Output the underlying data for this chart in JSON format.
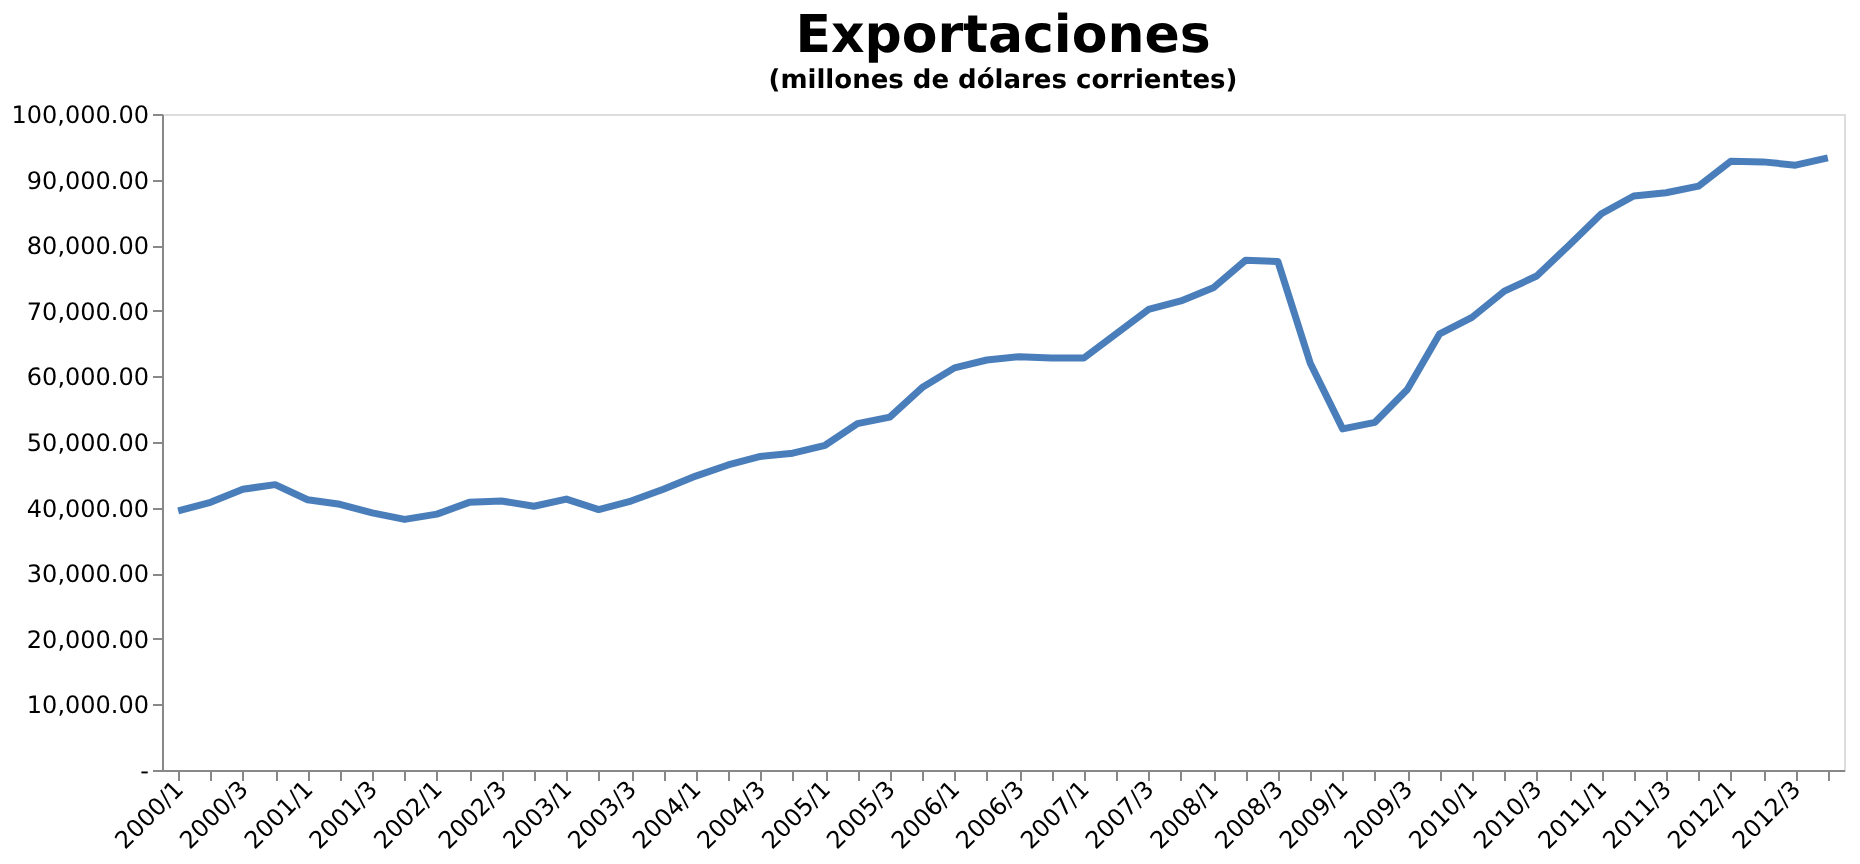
{
  "chart_data": {
    "type": "line",
    "title": "Exportaciones",
    "subtitle": "(millones de dólares corrientes)",
    "categories": [
      "2000/1",
      null,
      "2000/3",
      null,
      "2001/1",
      null,
      "2001/3",
      null,
      "2002/1",
      null,
      "2002/3",
      null,
      "2003/1",
      null,
      "2003/3",
      null,
      "2004/1",
      null,
      "2004/3",
      null,
      "2005/1",
      null,
      "2005/3",
      null,
      "2006/1",
      null,
      "2006/3",
      null,
      "2007/1",
      null,
      "2007/3",
      null,
      "2008/1",
      null,
      "2008/3",
      null,
      "2009/1",
      null,
      "2009/3",
      null,
      "2010/1",
      null,
      "2010/3",
      null,
      "2011/1",
      null,
      "2011/3",
      null,
      "2012/1",
      null,
      "2012/3",
      null
    ],
    "series": [
      {
        "color": "#4a7ebb",
        "values": [
          39500,
          40800,
          42800,
          43500,
          41200,
          40500,
          39200,
          38200,
          39000,
          40800,
          41000,
          40200,
          41300,
          39700,
          41000,
          42800,
          44800,
          46500,
          47800,
          48300,
          49500,
          52800,
          53800,
          58300,
          61300,
          62500,
          63000,
          62800,
          62800,
          66500,
          70200,
          71500,
          73500,
          77700,
          77500,
          62000,
          52000,
          53000,
          58000,
          66500,
          69000,
          73000,
          75300,
          80000,
          84800,
          87500,
          88000,
          89000,
          92800,
          92700,
          92200,
          93300
        ]
      }
    ],
    "ylim": [
      0,
      100000
    ],
    "yticks": [
      {
        "value": 0,
        "label": "-"
      },
      {
        "value": 10000,
        "label": "10,000.00"
      },
      {
        "value": 20000,
        "label": "20,000.00"
      },
      {
        "value": 30000,
        "label": "30,000.00"
      },
      {
        "value": 40000,
        "label": "40,000.00"
      },
      {
        "value": 50000,
        "label": "50,000.00"
      },
      {
        "value": 60000,
        "label": "60,000.00"
      },
      {
        "value": 70000,
        "label": "70,000.00"
      },
      {
        "value": 80000,
        "label": "80,000.00"
      },
      {
        "value": 90000,
        "label": "90,000.00"
      },
      {
        "value": 100000,
        "label": "100,000.00"
      }
    ],
    "grid": false,
    "legend": false,
    "marker": "none",
    "line_style": "solid"
  }
}
